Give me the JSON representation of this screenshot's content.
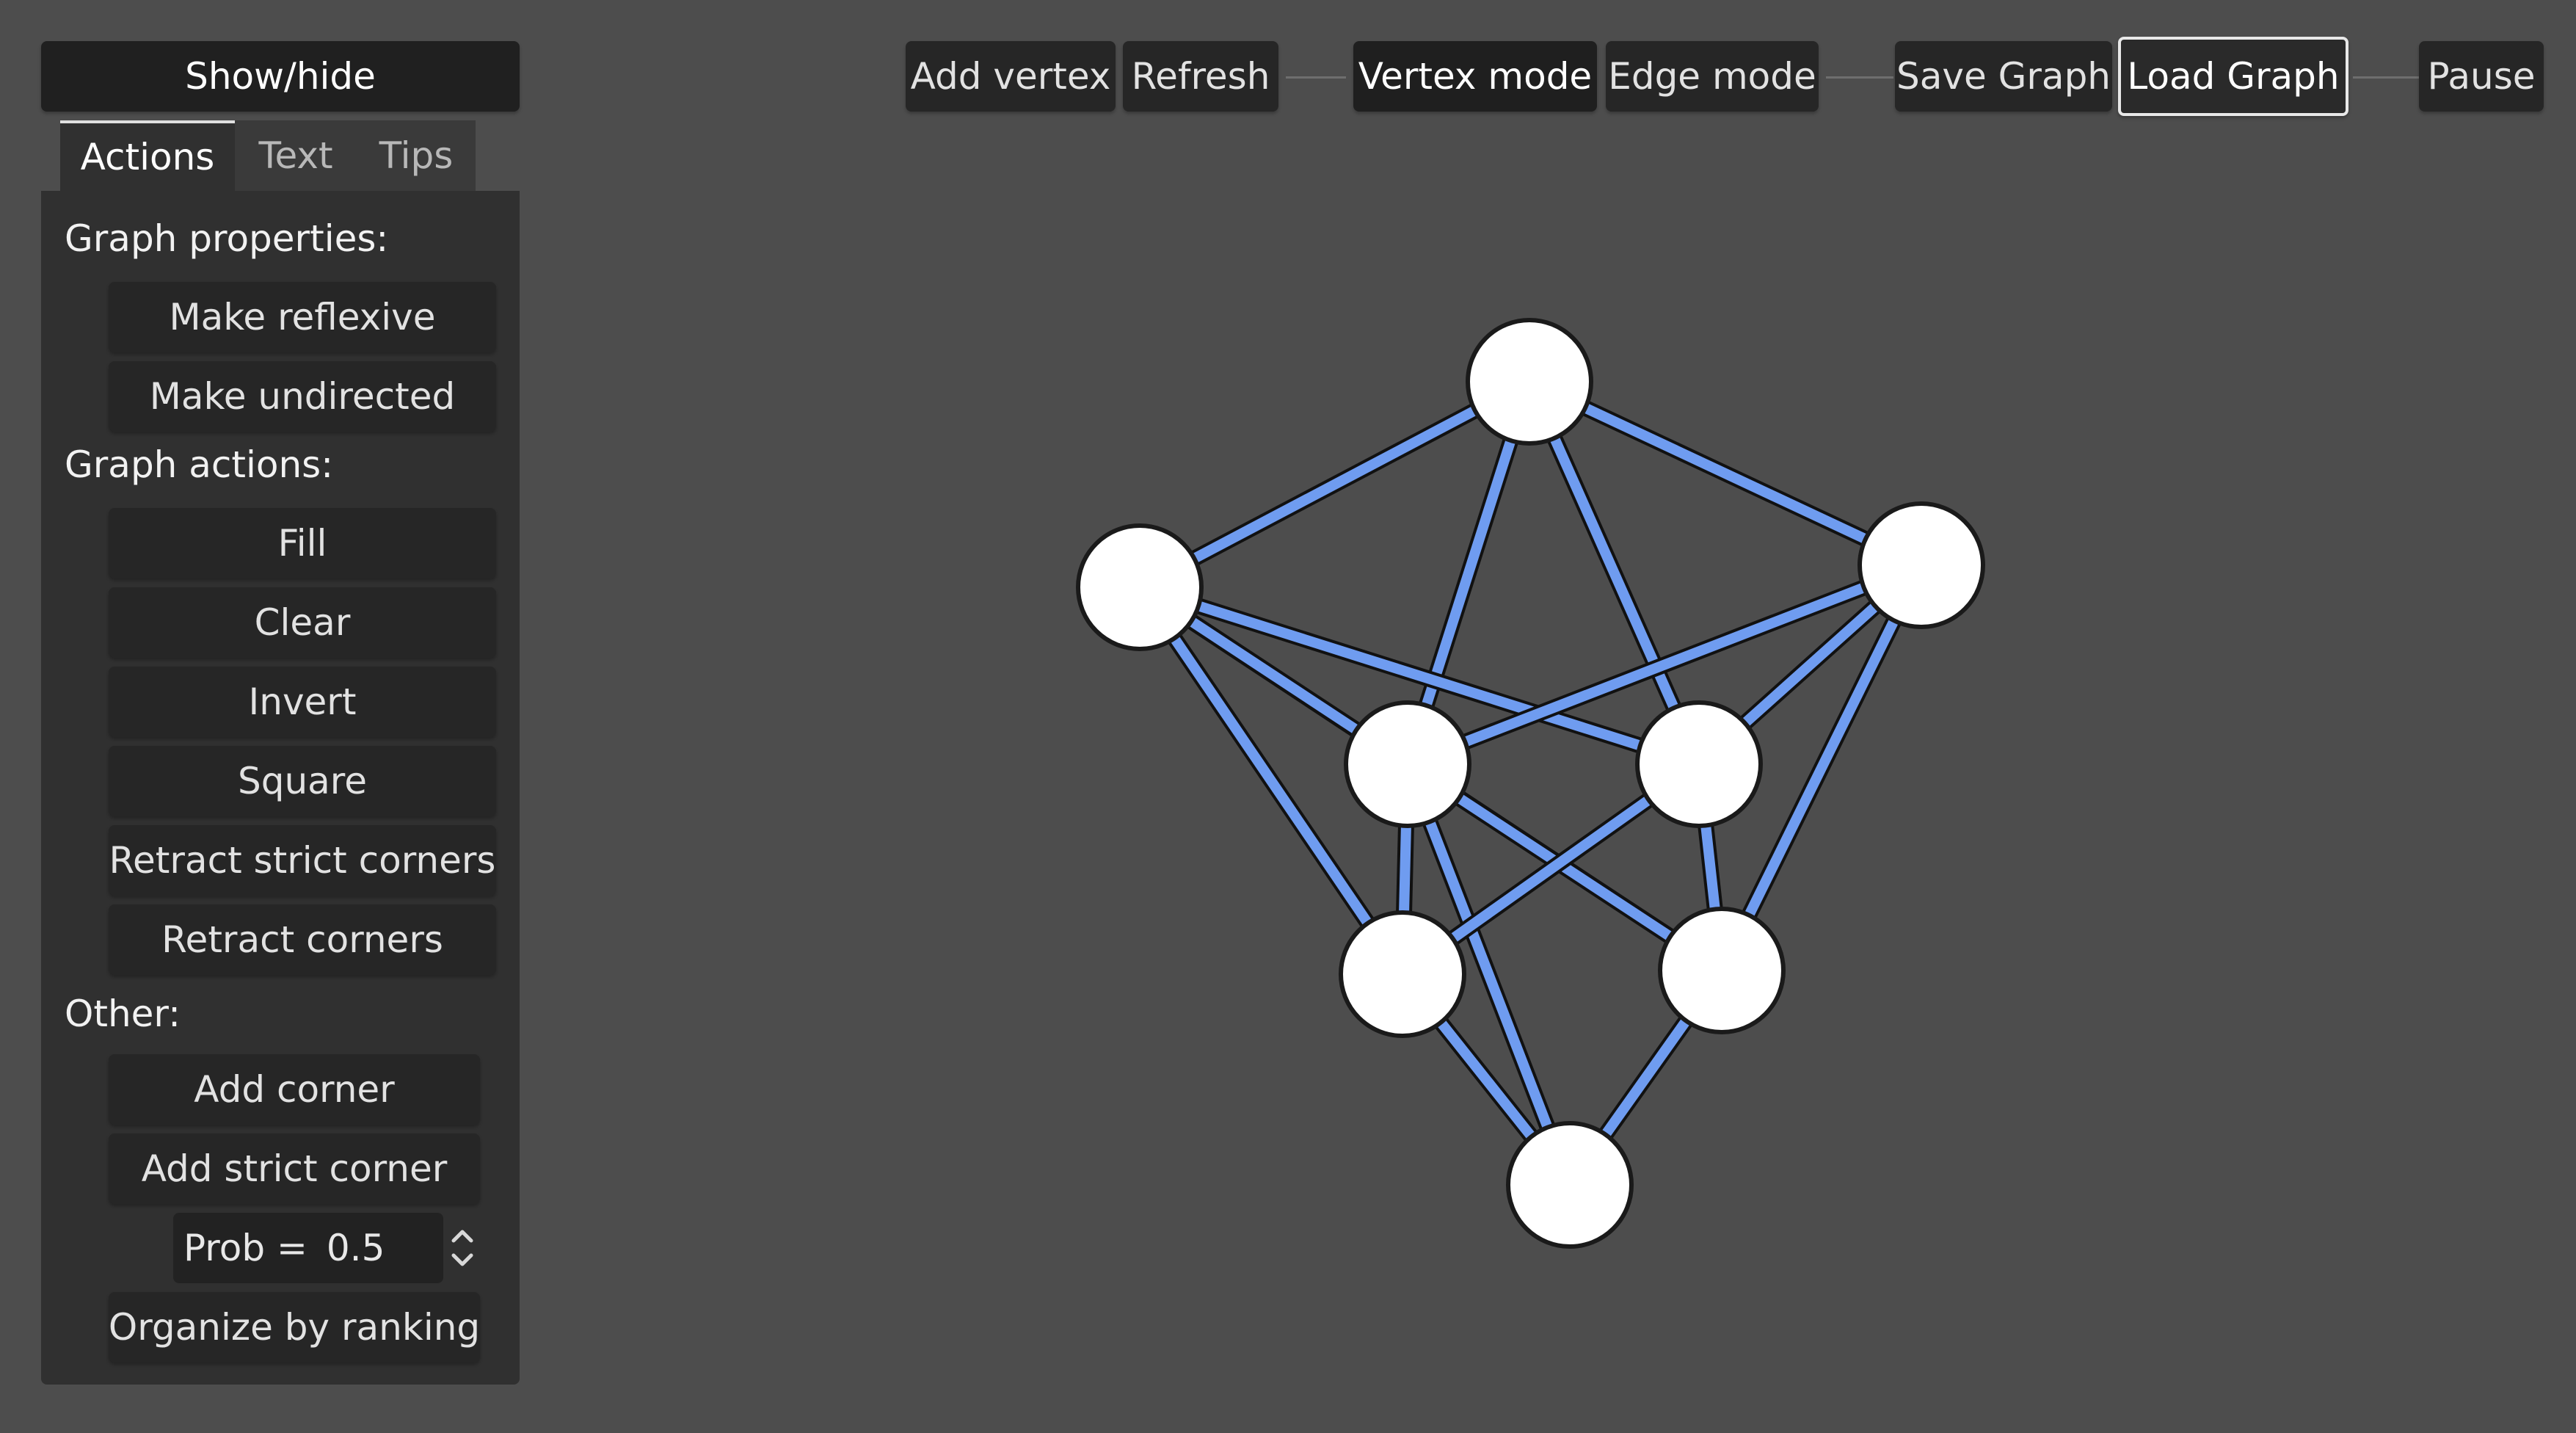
{
  "sidebar": {
    "show_hide": "Show/hide",
    "tabs": [
      {
        "label": "Actions",
        "active": true
      },
      {
        "label": "Text",
        "active": false
      },
      {
        "label": "Tips",
        "active": false
      }
    ],
    "graph_properties_label": "Graph properties:",
    "make_reflexive": "Make reflexive",
    "make_undirected": "Make undirected",
    "graph_actions_label": "Graph actions:",
    "fill": "Fill",
    "clear": "Clear",
    "invert": "Invert",
    "square": "Square",
    "retract_strict_corners": "Retract strict corners",
    "retract_corners": "Retract corners",
    "other_label": "Other:",
    "add_corner": "Add corner",
    "add_strict_corner": "Add strict corner",
    "prob_label": "Prob =",
    "prob_value": "0.5",
    "organize_by_ranking": "Organize by ranking"
  },
  "toolbar": {
    "add_vertex": "Add vertex",
    "refresh": "Refresh",
    "vertex_mode": "Vertex mode",
    "edge_mode": "Edge mode",
    "save_graph": "Save Graph",
    "load_graph": "Load Graph",
    "pause": "Pause"
  },
  "graph": {
    "edge_color": "#6f9cf0",
    "vertex_fill": "#ffffff",
    "vertex_stroke": "#1a1a1a",
    "vertex_count": 8,
    "edges": [
      [
        0,
        1
      ],
      [
        0,
        2
      ],
      [
        0,
        3
      ],
      [
        0,
        4
      ],
      [
        1,
        3
      ],
      [
        1,
        4
      ],
      [
        1,
        5
      ],
      [
        1,
        6
      ],
      [
        2,
        3
      ],
      [
        2,
        4
      ],
      [
        2,
        6
      ],
      [
        3,
        5
      ],
      [
        3,
        6
      ],
      [
        3,
        7
      ],
      [
        4,
        5
      ],
      [
        4,
        6
      ],
      [
        5,
        7
      ],
      [
        6,
        7
      ]
    ]
  }
}
